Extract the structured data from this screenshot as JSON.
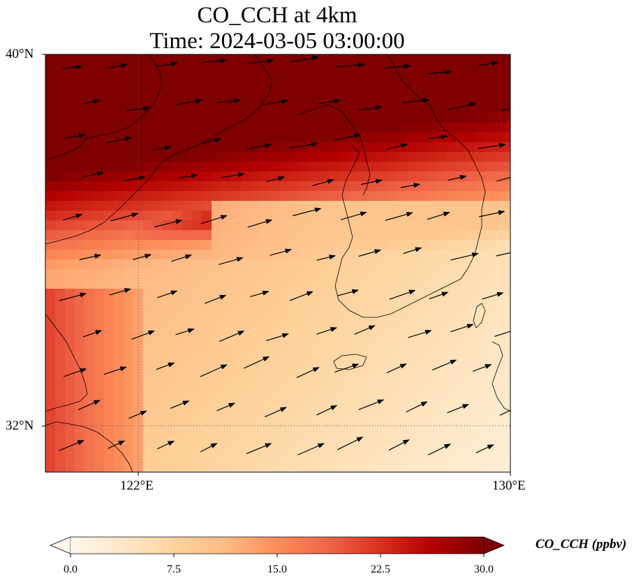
{
  "title": {
    "line1": "CO_CCH at 4km",
    "line2": "Time: 2024-03-05 03:00:00"
  },
  "map": {
    "lat_labels": [
      "40°N",
      "32°N"
    ],
    "lon_labels": [
      "122°E",
      "130°E"
    ],
    "extent": {
      "lon_min": 120,
      "lon_max": 130,
      "lat_min": 31,
      "lat_max": 40
    },
    "gridlines": {
      "lons": [
        122
      ],
      "lats": [
        32
      ],
      "style": "dotted"
    },
    "field": "CO_CCH",
    "level": "4km"
  },
  "colorbar": {
    "title": "CO_CCH (ppbv)",
    "tick_labels": [
      "0.0",
      "7.5",
      "15.0",
      "22.5",
      "30.0"
    ],
    "ticks": [
      0,
      7.5,
      15,
      22.5,
      30
    ],
    "min": 0,
    "max": 30,
    "extend": "both",
    "colormap": "OrRd",
    "colors": [
      "#fff7ec",
      "#fee8c8",
      "#fdd49e",
      "#fdbb84",
      "#fc8d59",
      "#ef6548",
      "#d7301f",
      "#b30000",
      "#7f0000"
    ]
  }
}
